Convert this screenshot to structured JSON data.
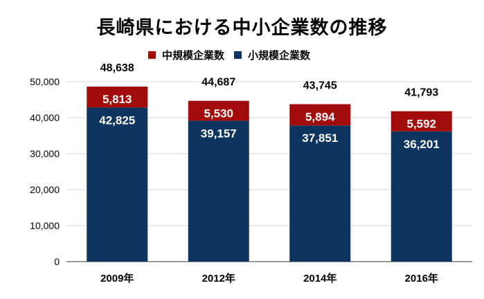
{
  "chart_data": {
    "type": "bar",
    "stacked": true,
    "title": "長崎県における中小企業数の推移",
    "categories": [
      "2009年",
      "2012年",
      "2014年",
      "2016年"
    ],
    "series": [
      {
        "name": "小規模企業数",
        "color": "#0d3560",
        "values": [
          42825,
          39157,
          37851,
          36201
        ]
      },
      {
        "name": "中規模企業数",
        "color": "#a30b0b",
        "values": [
          5813,
          5530,
          5894,
          5592
        ]
      }
    ],
    "totals": [
      48638,
      44687,
      43745,
      41793
    ],
    "ylim": [
      0,
      50000
    ],
    "yticks": [
      0,
      10000,
      20000,
      30000,
      40000,
      50000
    ],
    "ytick_labels": [
      "0",
      "10,000",
      "20,000",
      "30,000",
      "40,000",
      "50,000"
    ],
    "legend_order": [
      "中規模企業数",
      "小規模企業数"
    ],
    "legend_position": "top",
    "grid": true,
    "xlabel": "",
    "ylabel": ""
  }
}
